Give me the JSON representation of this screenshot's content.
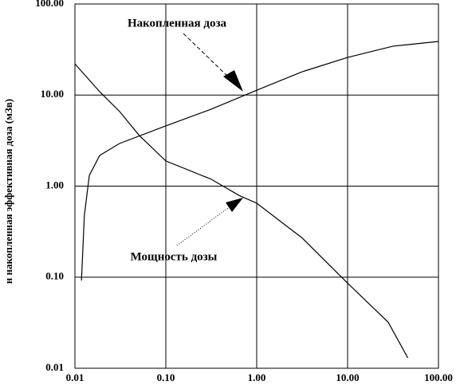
{
  "chart_data": {
    "type": "line",
    "y_label": "н накопленная эффективная доза (мЗв)",
    "log_x": true,
    "log_y": true,
    "grid": true,
    "xlim": [
      0.01,
      100
    ],
    "ylim": [
      0.01,
      100
    ],
    "xticks": [
      {
        "value": 0.01,
        "label": "0.01"
      },
      {
        "value": 0.1,
        "label": "0.10"
      },
      {
        "value": 1,
        "label": "1.00"
      },
      {
        "value": 10,
        "label": "10.00"
      },
      {
        "value": 100,
        "label": "100.00"
      }
    ],
    "yticks": [
      {
        "value": 0.01,
        "label": "0.01"
      },
      {
        "value": 0.1,
        "label": "0.10"
      },
      {
        "value": 1,
        "label": "1.00"
      },
      {
        "value": 10,
        "label": "10.00"
      },
      {
        "value": 100,
        "label": "100.00"
      }
    ],
    "series": [
      {
        "color": "#000000",
        "x": [
          0.0118,
          0.0127,
          0.0144,
          0.0187,
          0.031,
          0.1,
          0.316,
          1,
          3.16,
          10,
          31.6,
          100
        ],
        "values": [
          0.092,
          0.48,
          1.31,
          2.17,
          2.94,
          4.58,
          7.0,
          11.3,
          18.0,
          25.9,
          34.4,
          38.8
        ]
      },
      {
        "color": "#000000",
        "x": [
          0.01,
          0.0187,
          0.031,
          0.051,
          0.1,
          0.316,
          0.64,
          1,
          3.16,
          10,
          28,
          46
        ],
        "values": [
          22,
          10.9,
          6.6,
          3.6,
          1.89,
          1.19,
          0.79,
          0.65,
          0.27,
          0.086,
          0.032,
          0.013
        ]
      }
    ],
    "annotations": [
      {
        "text": "Накопленная доза"
      },
      {
        "text": "Мощность дозы"
      }
    ]
  }
}
